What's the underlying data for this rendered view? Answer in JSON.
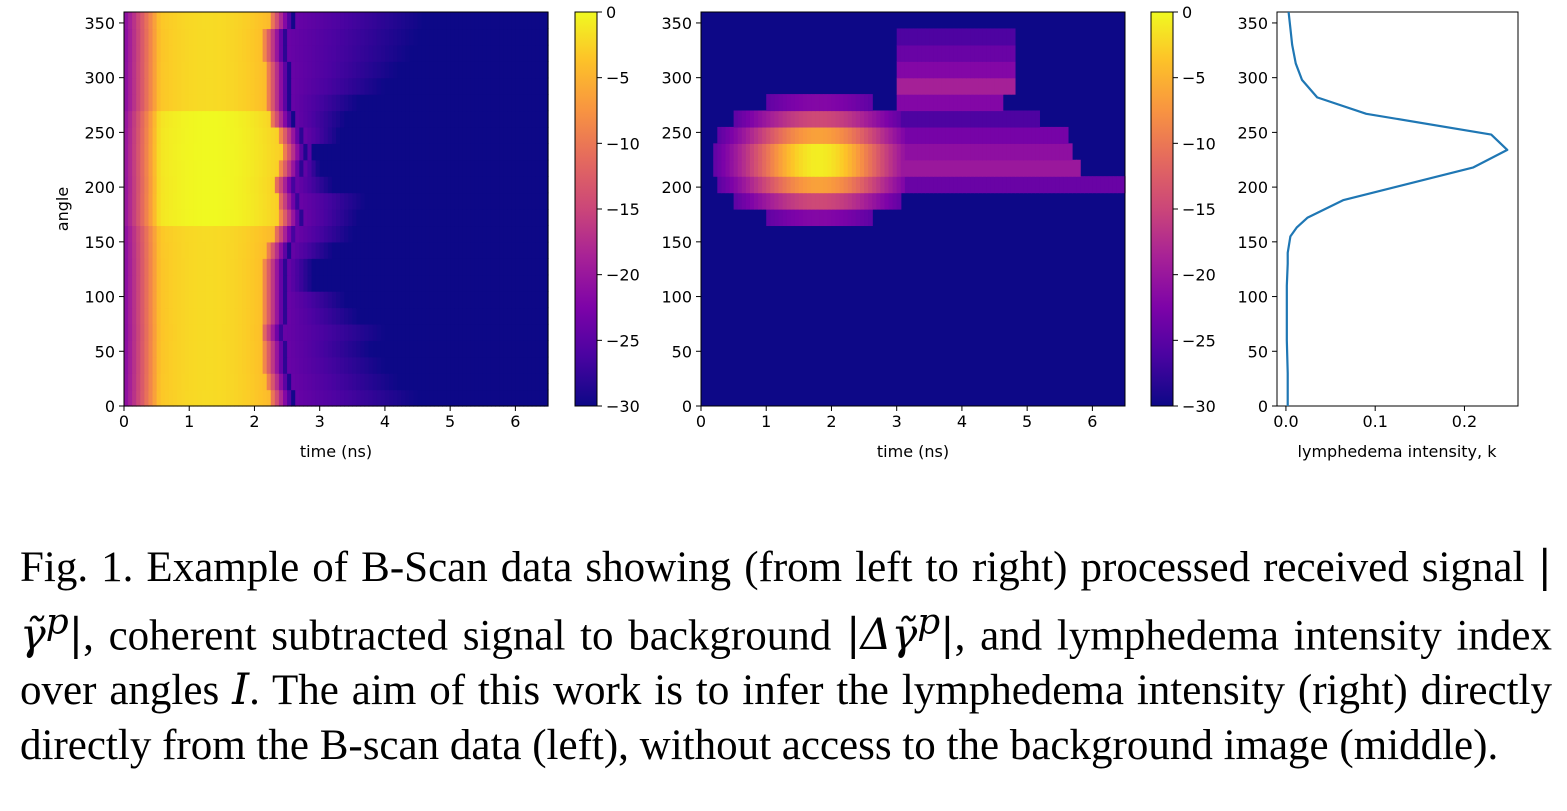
{
  "figure": {
    "panels": [
      {
        "type": "heatmap",
        "xlabel": "time (ns)",
        "ylabel": "angle",
        "xlim": [
          0,
          6.5
        ],
        "ylim": [
          0,
          360
        ],
        "xticks": [
          "0",
          "1",
          "2",
          "3",
          "4",
          "5",
          "6"
        ],
        "yticks": [
          "0",
          "50",
          "100",
          "150",
          "200",
          "250",
          "300",
          "350"
        ],
        "colorbar": {
          "range": [
            -30,
            0
          ],
          "ticks": [
            "0",
            "−5",
            "−10",
            "−15",
            "−20",
            "−25",
            "−30"
          ],
          "colormap": "plasma"
        }
      },
      {
        "type": "heatmap",
        "xlabel": "time (ns)",
        "ylabel": "",
        "xlim": [
          0,
          6.5
        ],
        "ylim": [
          0,
          360
        ],
        "xticks": [
          "0",
          "1",
          "2",
          "3",
          "4",
          "5",
          "6"
        ],
        "yticks": [
          "0",
          "50",
          "100",
          "150",
          "200",
          "250",
          "300",
          "350"
        ],
        "colorbar": {
          "range": [
            -30,
            0
          ],
          "ticks": [
            "0",
            "−5",
            "−10",
            "−15",
            "−20",
            "−25",
            "−30"
          ],
          "colormap": "plasma"
        }
      },
      {
        "type": "line",
        "xlabel": "lymphedema intensity, k",
        "ylabel": "",
        "xlim": [
          -0.01,
          0.26
        ],
        "ylim": [
          0,
          360
        ],
        "xticks": [
          "0.0",
          "0.1",
          "0.2"
        ],
        "yticks": [
          "0",
          "50",
          "100",
          "150",
          "200",
          "250",
          "300",
          "350"
        ],
        "line_color": "#1f77b4"
      }
    ]
  },
  "chart_data": [
    {
      "type": "heatmap",
      "xlabel": "time (ns)",
      "ylabel": "angle",
      "xlim": [
        0,
        6.5
      ],
      "ylim": [
        0,
        360
      ],
      "value_range": [
        -30,
        0
      ],
      "colormap": "plasma",
      "row_angles": [
        0,
        15,
        30,
        45,
        60,
        75,
        90,
        105,
        120,
        135,
        150,
        165,
        180,
        195,
        210,
        225,
        240,
        255,
        270,
        285,
        300,
        315,
        330,
        345
      ],
      "pulse_end_time": [
        2.6,
        2.55,
        2.5,
        2.5,
        2.45,
        2.5,
        2.5,
        2.5,
        2.5,
        2.55,
        2.65,
        2.75,
        2.7,
        2.65,
        2.75,
        2.8,
        2.75,
        2.6,
        2.55,
        2.55,
        2.55,
        2.5,
        2.5,
        2.6
      ],
      "tail_end_time": [
        4.5,
        4.2,
        4.0,
        3.8,
        4.0,
        3.6,
        3.4,
        2.9,
        2.9,
        3.2,
        3.5,
        3.6,
        3.7,
        3.2,
        3.0,
        2.9,
        3.3,
        3.4,
        3.6,
        4.0,
        4.2,
        4.4,
        4.5,
        4.6
      ],
      "peak_time": 1.3
    },
    {
      "type": "heatmap",
      "xlabel": "time (ns)",
      "ylabel": "",
      "xlim": [
        0,
        6.5
      ],
      "ylim": [
        0,
        360
      ],
      "value_range": [
        -30,
        0
      ],
      "colormap": "plasma",
      "row_angles": [
        0,
        15,
        30,
        45,
        60,
        75,
        90,
        105,
        120,
        135,
        150,
        165,
        180,
        195,
        210,
        225,
        240,
        255,
        270,
        285,
        300,
        315,
        330,
        345
      ],
      "blob_center": {
        "time": 1.8,
        "angle": 225
      },
      "tail": [
        {
          "angle": 195,
          "start": 3.0,
          "end": 6.5,
          "level": -24
        },
        {
          "angle": 210,
          "start": 3.0,
          "end": 5.8,
          "level": -20
        },
        {
          "angle": 225,
          "start": 3.0,
          "end": 5.7,
          "level": -21
        },
        {
          "angle": 240,
          "start": 3.0,
          "end": 5.6,
          "level": -23
        },
        {
          "angle": 255,
          "start": 3.0,
          "end": 5.2,
          "level": -26
        },
        {
          "angle": 270,
          "start": 3.0,
          "end": 4.6,
          "level": -22
        },
        {
          "angle": 285,
          "start": 3.0,
          "end": 4.8,
          "level": -19
        },
        {
          "angle": 300,
          "start": 3.0,
          "end": 4.8,
          "level": -22
        },
        {
          "angle": 315,
          "start": 3.0,
          "end": 4.8,
          "level": -24
        },
        {
          "angle": 330,
          "start": 3.0,
          "end": 4.8,
          "level": -26
        }
      ]
    },
    {
      "type": "line",
      "xlabel": "lymphedema intensity, k",
      "ylabel": "",
      "xlim": [
        -0.01,
        0.26
      ],
      "ylim": [
        0,
        360
      ],
      "color": "#1f77b4",
      "x": [
        0.002,
        0.002,
        0.001,
        0.001,
        0.001,
        0.002,
        0.002,
        0.005,
        0.012,
        0.024,
        0.064,
        0.21,
        0.248,
        0.23,
        0.09,
        0.035,
        0.018,
        0.011,
        0.007,
        0.005,
        0.003
      ],
      "y": [
        0,
        30,
        60,
        90,
        110,
        130,
        140,
        155,
        163,
        172,
        188,
        218,
        234,
        248,
        267,
        282,
        298,
        313,
        330,
        345,
        360
      ]
    }
  ],
  "caption": {
    "p1": "Fig. 1.  Example of B-Scan data showing (from left to right) processed received signal ",
    "m1": "|γ̃",
    "m1sup": "p",
    "m1end": "|",
    "p2": ", coherent subtracted signal to background ",
    "m2": "|Δγ̃",
    "m2sup": "p",
    "m2end": "|",
    "p3": ", and lymphedema intensity index over angles ",
    "m3": "I",
    "p4": ". The aim of this work is to infer the lymphedema intensity (right) directly directly from the B-scan data (left), without access to the background image (middle)."
  }
}
